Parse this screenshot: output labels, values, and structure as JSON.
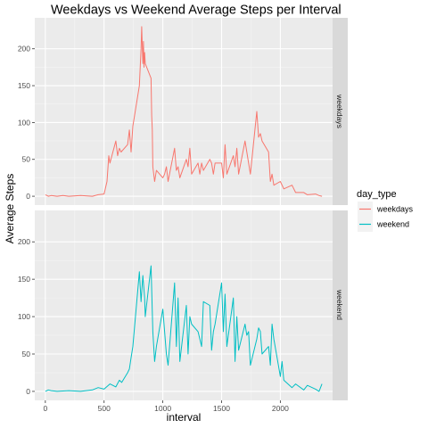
{
  "chart_data": {
    "type": "line",
    "title": "Weekdays vs Weekend Average Steps per Interval",
    "xlabel": "interval",
    "ylabel": "Average Steps",
    "xlim": [
      -90,
      2445
    ],
    "ylim": [
      -12,
      242
    ],
    "x_ticks": [
      0,
      500,
      1000,
      1500,
      2000
    ],
    "y_ticks": [
      0,
      50,
      100,
      150,
      200
    ],
    "grid": true,
    "facets": [
      "weekdays",
      "weekend"
    ],
    "legend": {
      "title": "day_type",
      "placement": "right",
      "items": [
        {
          "label": "weekdays",
          "color": "#F8766D"
        },
        {
          "label": "weekend",
          "color": "#00BFC4"
        }
      ]
    },
    "series": [
      {
        "name": "weekdays",
        "color": "#F8766D",
        "x": [
          0,
          25,
          50,
          100,
          150,
          200,
          300,
          400,
          450,
          500,
          525,
          540,
          550,
          600,
          615,
          630,
          645,
          700,
          715,
          730,
          745,
          800,
          815,
          820,
          830,
          835,
          840,
          845,
          850,
          900,
          905,
          910,
          915,
          930,
          945,
          1000,
          1015,
          1030,
          1045,
          1100,
          1115,
          1130,
          1145,
          1200,
          1215,
          1230,
          1245,
          1300,
          1315,
          1330,
          1345,
          1400,
          1415,
          1430,
          1445,
          1500,
          1515,
          1530,
          1545,
          1600,
          1615,
          1630,
          1645,
          1700,
          1715,
          1730,
          1745,
          1800,
          1815,
          1830,
          1845,
          1900,
          1915,
          1930,
          1945,
          2000,
          2030,
          2100,
          2130,
          2200,
          2230,
          2300,
          2330,
          2355
        ],
        "values": [
          2,
          0,
          1,
          0,
          1,
          0,
          1,
          0,
          2,
          3,
          20,
          55,
          45,
          75,
          55,
          65,
          60,
          70,
          90,
          60,
          95,
          150,
          200,
          230,
          180,
          210,
          175,
          195,
          180,
          160,
          110,
          90,
          40,
          20,
          35,
          25,
          30,
          40,
          20,
          65,
          35,
          40,
          25,
          50,
          40,
          65,
          30,
          45,
          30,
          45,
          35,
          50,
          45,
          30,
          45,
          45,
          25,
          70,
          30,
          55,
          40,
          65,
          30,
          75,
          60,
          45,
          30,
          115,
          80,
          85,
          75,
          60,
          20,
          30,
          15,
          20,
          10,
          15,
          5,
          5,
          2,
          3,
          1,
          0
        ]
      },
      {
        "name": "weekend",
        "color": "#00BFC4",
        "x": [
          0,
          25,
          50,
          100,
          200,
          300,
          400,
          450,
          500,
          550,
          600,
          630,
          650,
          700,
          715,
          730,
          745,
          800,
          815,
          830,
          845,
          850,
          900,
          915,
          930,
          945,
          1000,
          1015,
          1030,
          1045,
          1100,
          1115,
          1130,
          1145,
          1200,
          1215,
          1230,
          1245,
          1300,
          1315,
          1330,
          1345,
          1400,
          1415,
          1430,
          1445,
          1500,
          1515,
          1530,
          1545,
          1600,
          1615,
          1630,
          1645,
          1700,
          1715,
          1730,
          1745,
          1800,
          1815,
          1830,
          1845,
          1900,
          1915,
          1930,
          1945,
          2000,
          2015,
          2030,
          2100,
          2130,
          2200,
          2230,
          2300,
          2330,
          2355
        ],
        "values": [
          0,
          2,
          1,
          0,
          1,
          0,
          2,
          5,
          3,
          10,
          6,
          15,
          12,
          25,
          30,
          45,
          60,
          160,
          120,
          155,
          125,
          100,
          168,
          80,
          40,
          60,
          110,
          80,
          50,
          35,
          145,
          60,
          125,
          40,
          115,
          50,
          100,
          90,
          80,
          70,
          60,
          120,
          115,
          55,
          80,
          90,
          145,
          80,
          130,
          60,
          125,
          40,
          100,
          55,
          90,
          75,
          80,
          35,
          70,
          85,
          80,
          50,
          60,
          35,
          90,
          70,
          20,
          40,
          15,
          5,
          10,
          2,
          8,
          3,
          0,
          10
        ]
      }
    ]
  }
}
